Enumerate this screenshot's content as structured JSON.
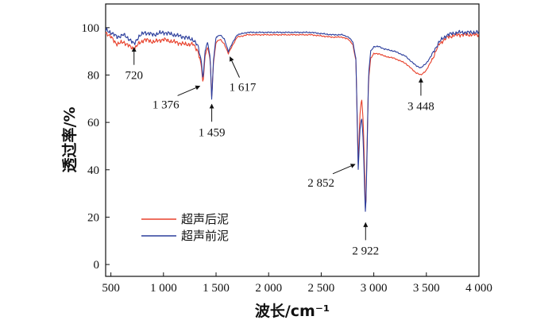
{
  "chart_data": {
    "type": "line",
    "xlabel": "波长/cm⁻¹",
    "ylabel": "透过率/%",
    "xlim": [
      450,
      4000
    ],
    "ylim": [
      -5,
      110
    ],
    "x_ticks": [
      {
        "value": 500,
        "label": "500"
      },
      {
        "value": 1000,
        "label": "1 000"
      },
      {
        "value": 1500,
        "label": "1 500"
      },
      {
        "value": 2000,
        "label": "2 000"
      },
      {
        "value": 2500,
        "label": "2 500"
      },
      {
        "value": 3000,
        "label": "3 000"
      },
      {
        "value": 3500,
        "label": "3 500"
      },
      {
        "value": 4000,
        "label": "4 000"
      }
    ],
    "y_ticks": [
      {
        "value": 0,
        "label": "0"
      },
      {
        "value": 20,
        "label": "20"
      },
      {
        "value": 40,
        "label": "40"
      },
      {
        "value": 60,
        "label": "60"
      },
      {
        "value": 80,
        "label": "80"
      },
      {
        "value": 100,
        "label": "100"
      }
    ],
    "legend_position": "bottom-left",
    "series": [
      {
        "name": "超声后泥",
        "color": "#e8412c",
        "x": [
          450,
          500,
          560,
          620,
          680,
          720,
          760,
          820,
          900,
          1000,
          1100,
          1200,
          1280,
          1330,
          1360,
          1376,
          1395,
          1420,
          1445,
          1459,
          1475,
          1500,
          1540,
          1580,
          1617,
          1650,
          1700,
          1800,
          1900,
          2000,
          2200,
          2400,
          2600,
          2700,
          2760,
          2800,
          2830,
          2852,
          2870,
          2885,
          2900,
          2915,
          2922,
          2935,
          2950,
          2970,
          3000,
          3050,
          3100,
          3200,
          3300,
          3400,
          3448,
          3500,
          3560,
          3620,
          3700,
          3800,
          3900,
          4000
        ],
        "values": [
          98,
          96,
          93,
          94,
          92,
          91,
          93,
          95,
          94,
          95,
          94,
          93,
          93,
          90,
          84,
          76,
          88,
          92,
          86,
          70,
          85,
          94,
          95,
          93,
          89,
          92,
          96,
          97,
          97,
          97,
          97,
          97,
          96,
          96,
          95,
          93,
          86,
          43,
          65,
          70,
          60,
          35,
          19,
          48,
          78,
          87,
          89,
          89,
          88,
          87,
          85,
          81,
          80,
          82,
          87,
          93,
          96,
          97,
          97,
          97
        ]
      },
      {
        "name": "超声前泥",
        "color": "#2c3e9c",
        "x": [
          450,
          500,
          560,
          620,
          680,
          720,
          760,
          820,
          900,
          1000,
          1100,
          1200,
          1280,
          1330,
          1360,
          1376,
          1395,
          1420,
          1445,
          1459,
          1475,
          1500,
          1540,
          1580,
          1617,
          1650,
          1700,
          1800,
          1900,
          2000,
          2200,
          2400,
          2600,
          2700,
          2760,
          2800,
          2830,
          2852,
          2870,
          2885,
          2900,
          2915,
          2922,
          2935,
          2950,
          2970,
          3000,
          3050,
          3100,
          3200,
          3300,
          3400,
          3448,
          3500,
          3560,
          3620,
          3700,
          3800,
          3900,
          4000
        ],
        "values": [
          99,
          98,
          96,
          97,
          95,
          93,
          96,
          98,
          97,
          98,
          97,
          96,
          95,
          92,
          86,
          78,
          90,
          94,
          87,
          69,
          86,
          96,
          97,
          95,
          90,
          93,
          97,
          98,
          98,
          98,
          98,
          98,
          97,
          97,
          96,
          94,
          87,
          40,
          58,
          62,
          52,
          28,
          20,
          45,
          80,
          90,
          92,
          92,
          91,
          90,
          88,
          84,
          83,
          85,
          89,
          94,
          97,
          98,
          98,
          98
        ]
      }
    ],
    "annotations": [
      {
        "label": "720",
        "x": 720,
        "y": 93,
        "dir": "below"
      },
      {
        "label": "1 376",
        "x": 1376,
        "y": 76,
        "dir": "left"
      },
      {
        "label": "1 459",
        "x": 1459,
        "y": 69,
        "dir": "below"
      },
      {
        "label": "1 617",
        "x": 1617,
        "y": 89,
        "dir": "below-right"
      },
      {
        "label": "2 852",
        "x": 2852,
        "y": 43,
        "dir": "left"
      },
      {
        "label": "2 922",
        "x": 2922,
        "y": 19,
        "dir": "below"
      },
      {
        "label": "3 448",
        "x": 3448,
        "y": 80,
        "dir": "below"
      }
    ]
  }
}
